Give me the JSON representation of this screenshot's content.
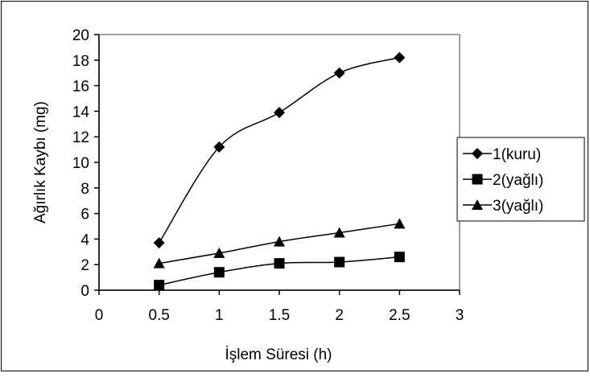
{
  "chart_data": {
    "type": "line",
    "xlabel": "İşlem Süresi (h)",
    "ylabel": "Ağırlık Kaybı (mg)",
    "x": [
      0.5,
      1,
      1.5,
      2,
      2.5
    ],
    "xlim": [
      0,
      3
    ],
    "ylim": [
      0,
      20
    ],
    "x_ticks": [
      "0",
      "0.5",
      "1",
      "1.5",
      "2",
      "2.5",
      "3"
    ],
    "y_ticks": [
      "0",
      "2",
      "4",
      "6",
      "8",
      "10",
      "12",
      "14",
      "16",
      "18",
      "20"
    ],
    "grid": false,
    "legend_position": "right",
    "series": [
      {
        "name": "1(kuru)",
        "marker": "diamond",
        "color": "#000000",
        "values": [
          3.7,
          11.2,
          13.9,
          17.0,
          18.2
        ]
      },
      {
        "name": "2(yağlı)",
        "marker": "square",
        "color": "#000000",
        "values": [
          0.4,
          1.4,
          2.1,
          2.2,
          2.6
        ]
      },
      {
        "name": "3(yağlı)",
        "marker": "triangle",
        "color": "#000000",
        "values": [
          2.1,
          2.9,
          3.8,
          4.5,
          5.2
        ]
      }
    ]
  }
}
